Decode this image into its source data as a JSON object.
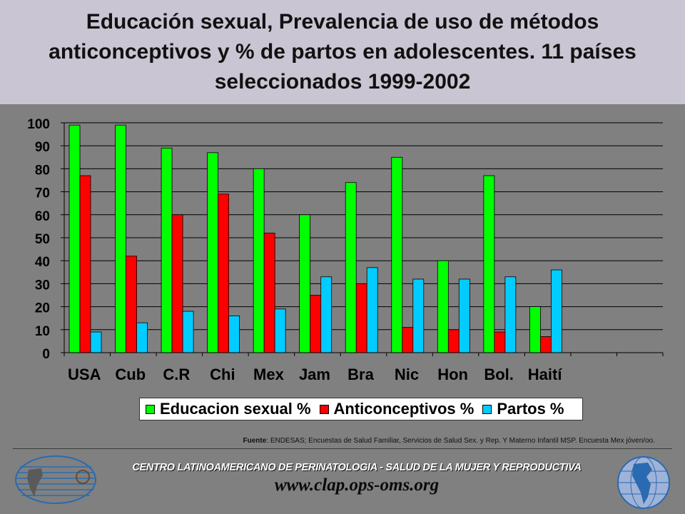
{
  "title": {
    "line1": "Educación sexual, Prevalencia de uso de métodos",
    "line2": "anticonceptivos y  % de partos en adolescentes. 11 países",
    "line3": "seleccionados  1999-2002"
  },
  "colors": {
    "educacion": "#00ff00",
    "anticonceptivos": "#ff0000",
    "partos": "#00ccff"
  },
  "chart_data": {
    "type": "bar",
    "categories": [
      "USA",
      "Cub",
      "C.R",
      "Chi",
      "Mex",
      "Jam",
      "Bra",
      "Nic",
      "Hon",
      "Bol.",
      "Haití",
      "",
      ""
    ],
    "series": [
      {
        "name": "Educacion sexual %",
        "values": [
          99,
          99,
          89,
          87,
          80,
          60,
          74,
          85,
          40,
          77,
          20,
          null,
          null
        ]
      },
      {
        "name": "Anticonceptivos %",
        "values": [
          77,
          42,
          60,
          69,
          52,
          25,
          30,
          11,
          10,
          9,
          7,
          null,
          null
        ]
      },
      {
        "name": "Partos %",
        "values": [
          9,
          13,
          18,
          16,
          19,
          33,
          37,
          32,
          32,
          33,
          36,
          null,
          null
        ]
      }
    ],
    "yticks": [
      "0",
      "10",
      "20",
      "30",
      "40",
      "50",
      "60",
      "70",
      "80",
      "90",
      "100"
    ],
    "ylim": [
      0,
      100
    ],
    "grid": true,
    "legend_position": "bottom"
  },
  "source": {
    "label": "Fuente",
    "text": ": ENDESAS; Encuestas de Salud Familiar, Servicios de Salud Sex. y Rep. Y Materno Infantil MSP. Encuesta Mex jóven/oo."
  },
  "footer": {
    "org_name": "CENTRO LATINOAMERICANO DE PERINATOLOGIA - SALUD DE LA MUJER Y REPRODUCTIVA",
    "website": "www.clap.ops-oms.org"
  }
}
